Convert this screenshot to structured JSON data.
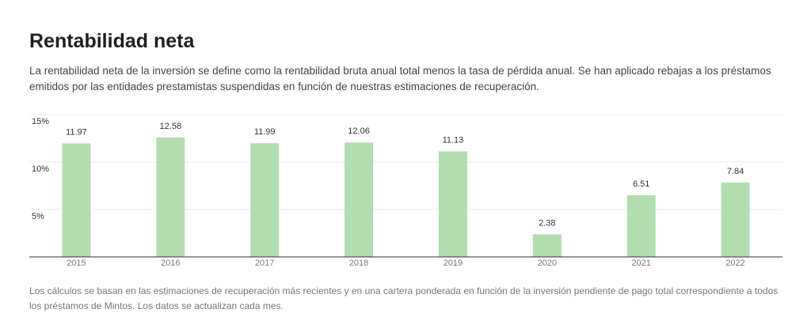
{
  "chart_data": {
    "type": "bar",
    "title": "Rentabilidad neta",
    "subtitle": "La rentabilidad neta de la inversión se define como la rentabilidad bruta anual total menos la tasa de pérdida anual. Se han aplicado rebajas a los préstamos emitidos por las entidades prestamistas suspendidas en función de nuestras estimaciones de recuperación.",
    "footnote": "Los cálculos se basan en las estimaciones de recuperación más recientes y en una cartera ponderada en función de la inversión pendiente de pago total correspondiente a todos los préstamos de Mintos. Los datos se actualizan cada mes.",
    "categories": [
      "2015",
      "2016",
      "2017",
      "2018",
      "2019",
      "2020",
      "2021",
      "2022"
    ],
    "values": [
      11.97,
      12.58,
      11.99,
      12.06,
      11.13,
      2.38,
      6.51,
      7.84
    ],
    "color": "#b2ddb0",
    "ylim": [
      0,
      15
    ],
    "yticks": [
      {
        "value": 5,
        "label": "5%"
      },
      {
        "value": 10,
        "label": "10%"
      },
      {
        "value": 15,
        "label": "15%"
      }
    ],
    "grid": true
  }
}
